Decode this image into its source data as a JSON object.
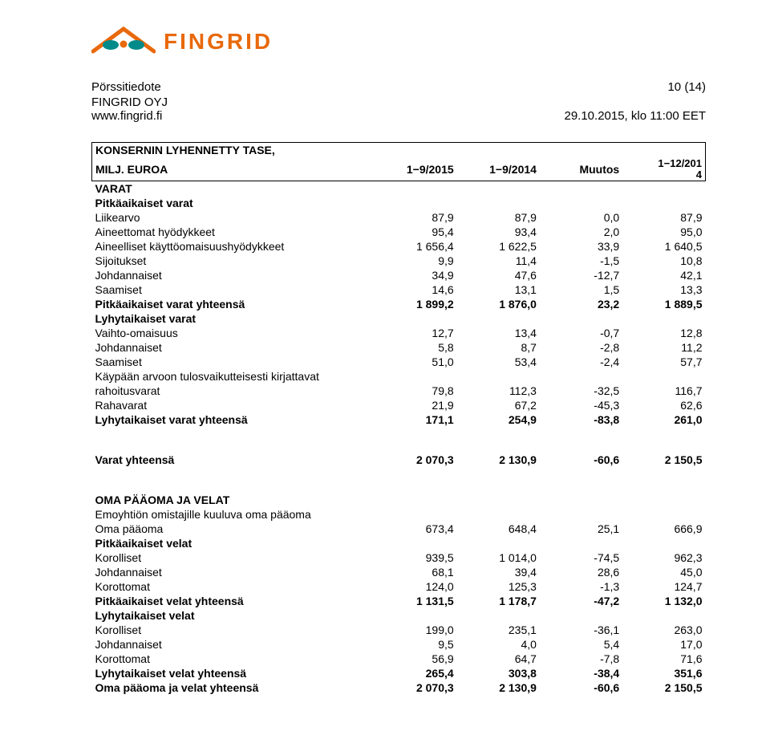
{
  "logo": {
    "text": "FINGRID",
    "color": "#e8690b"
  },
  "header": {
    "title": "Pörssitiedote",
    "page": "10 (14)",
    "company": "FINGRID OYJ",
    "site": "www.fingrid.fi",
    "datetime": "29.10.2015, klo 11:00 EET"
  },
  "table": {
    "title1": "KONSERNIN LYHENNETTY TASE,",
    "title2": "MILJ. EUROA",
    "cols": [
      "1−9/2015",
      "1−9/2014",
      "Muutos",
      "1−12/2014"
    ],
    "groups": [
      {
        "type": "section",
        "label": "VARAT"
      },
      {
        "type": "section",
        "label": "Pitkäaikaiset varat"
      },
      {
        "label": "Liikearvo",
        "indent": 1,
        "v": [
          "87,9",
          "87,9",
          "0,0",
          "87,9"
        ]
      },
      {
        "label": "Aineettomat hyödykkeet",
        "indent": 1,
        "v": [
          "95,4",
          "93,4",
          "2,0",
          "95,0"
        ]
      },
      {
        "label": "Aineelliset käyttöomaisuushyödykkeet",
        "indent": 1,
        "v": [
          "1 656,4",
          "1 622,5",
          "33,9",
          "1 640,5"
        ]
      },
      {
        "label": "Sijoitukset",
        "indent": 1,
        "v": [
          "9,9",
          "11,4",
          "-1,5",
          "10,8"
        ]
      },
      {
        "label": "Johdannaiset",
        "indent": 1,
        "v": [
          "34,9",
          "47,6",
          "-12,7",
          "42,1"
        ]
      },
      {
        "label": "Saamiset",
        "indent": 1,
        "v": [
          "14,6",
          "13,1",
          "1,5",
          "13,3"
        ]
      },
      {
        "type": "bold",
        "label": "Pitkäaikaiset varat yhteensä",
        "v": [
          "1 899,2",
          "1 876,0",
          "23,2",
          "1 889,5"
        ]
      },
      {
        "type": "section",
        "label": "Lyhytaikaiset varat"
      },
      {
        "label": "Vaihto-omaisuus",
        "indent": 1,
        "v": [
          "12,7",
          "13,4",
          "-0,7",
          "12,8"
        ]
      },
      {
        "label": "Johdannaiset",
        "indent": 1,
        "v": [
          "5,8",
          "8,7",
          "-2,8",
          "11,2"
        ]
      },
      {
        "label": "Saamiset",
        "indent": 1,
        "v": [
          "51,0",
          "53,4",
          "-2,4",
          "57,7"
        ]
      },
      {
        "label": "Käypään arvoon tulosvaikutteisesti kirjattavat",
        "indent": 1,
        "v": [
          "",
          "",
          "",
          ""
        ]
      },
      {
        "label": "rahoitusvarat",
        "indent": 1,
        "v": [
          "79,8",
          "112,3",
          "-32,5",
          "116,7"
        ]
      },
      {
        "label": "Rahavarat",
        "indent": 1,
        "v": [
          "21,9",
          "67,2",
          "-45,3",
          "62,6"
        ]
      },
      {
        "type": "bold",
        "label": "Lyhytaikaiset varat yhteensä",
        "v": [
          "171,1",
          "254,9",
          "-83,8",
          "261,0"
        ]
      },
      {
        "type": "gap"
      },
      {
        "type": "bold",
        "label": "Varat yhteensä",
        "v": [
          "2 070,3",
          "2 130,9",
          "-60,6",
          "2 150,5"
        ]
      },
      {
        "type": "gap"
      },
      {
        "type": "section",
        "label": "OMA PÄÄOMA JA VELAT"
      },
      {
        "label": "Emoyhtiön omistajille kuuluva oma pääoma"
      },
      {
        "label": "Oma pääoma",
        "indent": 1,
        "v": [
          "673,4",
          "648,4",
          "25,1",
          "666,9"
        ]
      },
      {
        "type": "section",
        "label": "Pitkäaikaiset velat"
      },
      {
        "label": "Korolliset",
        "indent": 1,
        "v": [
          "939,5",
          "1 014,0",
          "-74,5",
          "962,3"
        ]
      },
      {
        "label": "Johdannaiset",
        "indent": 1,
        "v": [
          "68,1",
          "39,4",
          "28,6",
          "45,0"
        ]
      },
      {
        "label": "Korottomat",
        "indent": 1,
        "v": [
          "124,0",
          "125,3",
          "-1,3",
          "124,7"
        ]
      },
      {
        "type": "bold",
        "label": "Pitkäaikaiset velat yhteensä",
        "v": [
          "1 131,5",
          "1 178,7",
          "-47,2",
          "1 132,0"
        ]
      },
      {
        "type": "section",
        "label": "Lyhytaikaiset velat"
      },
      {
        "label": "Korolliset",
        "indent": 1,
        "v": [
          "199,0",
          "235,1",
          "-36,1",
          "263,0"
        ]
      },
      {
        "label": "Johdannaiset",
        "indent": 1,
        "v": [
          "9,5",
          "4,0",
          "5,4",
          "17,0"
        ]
      },
      {
        "label": "Korottomat",
        "indent": 1,
        "v": [
          "56,9",
          "64,7",
          "-7,8",
          "71,6"
        ]
      },
      {
        "type": "bold",
        "label": "Lyhytaikaiset velat yhteensä",
        "v": [
          "265,4",
          "303,8",
          "-38,4",
          "351,6"
        ]
      },
      {
        "type": "bold",
        "label": "Oma pääoma ja velat yhteensä",
        "v": [
          "2 070,3",
          "2 130,9",
          "-60,6",
          "2 150,5"
        ]
      }
    ]
  }
}
